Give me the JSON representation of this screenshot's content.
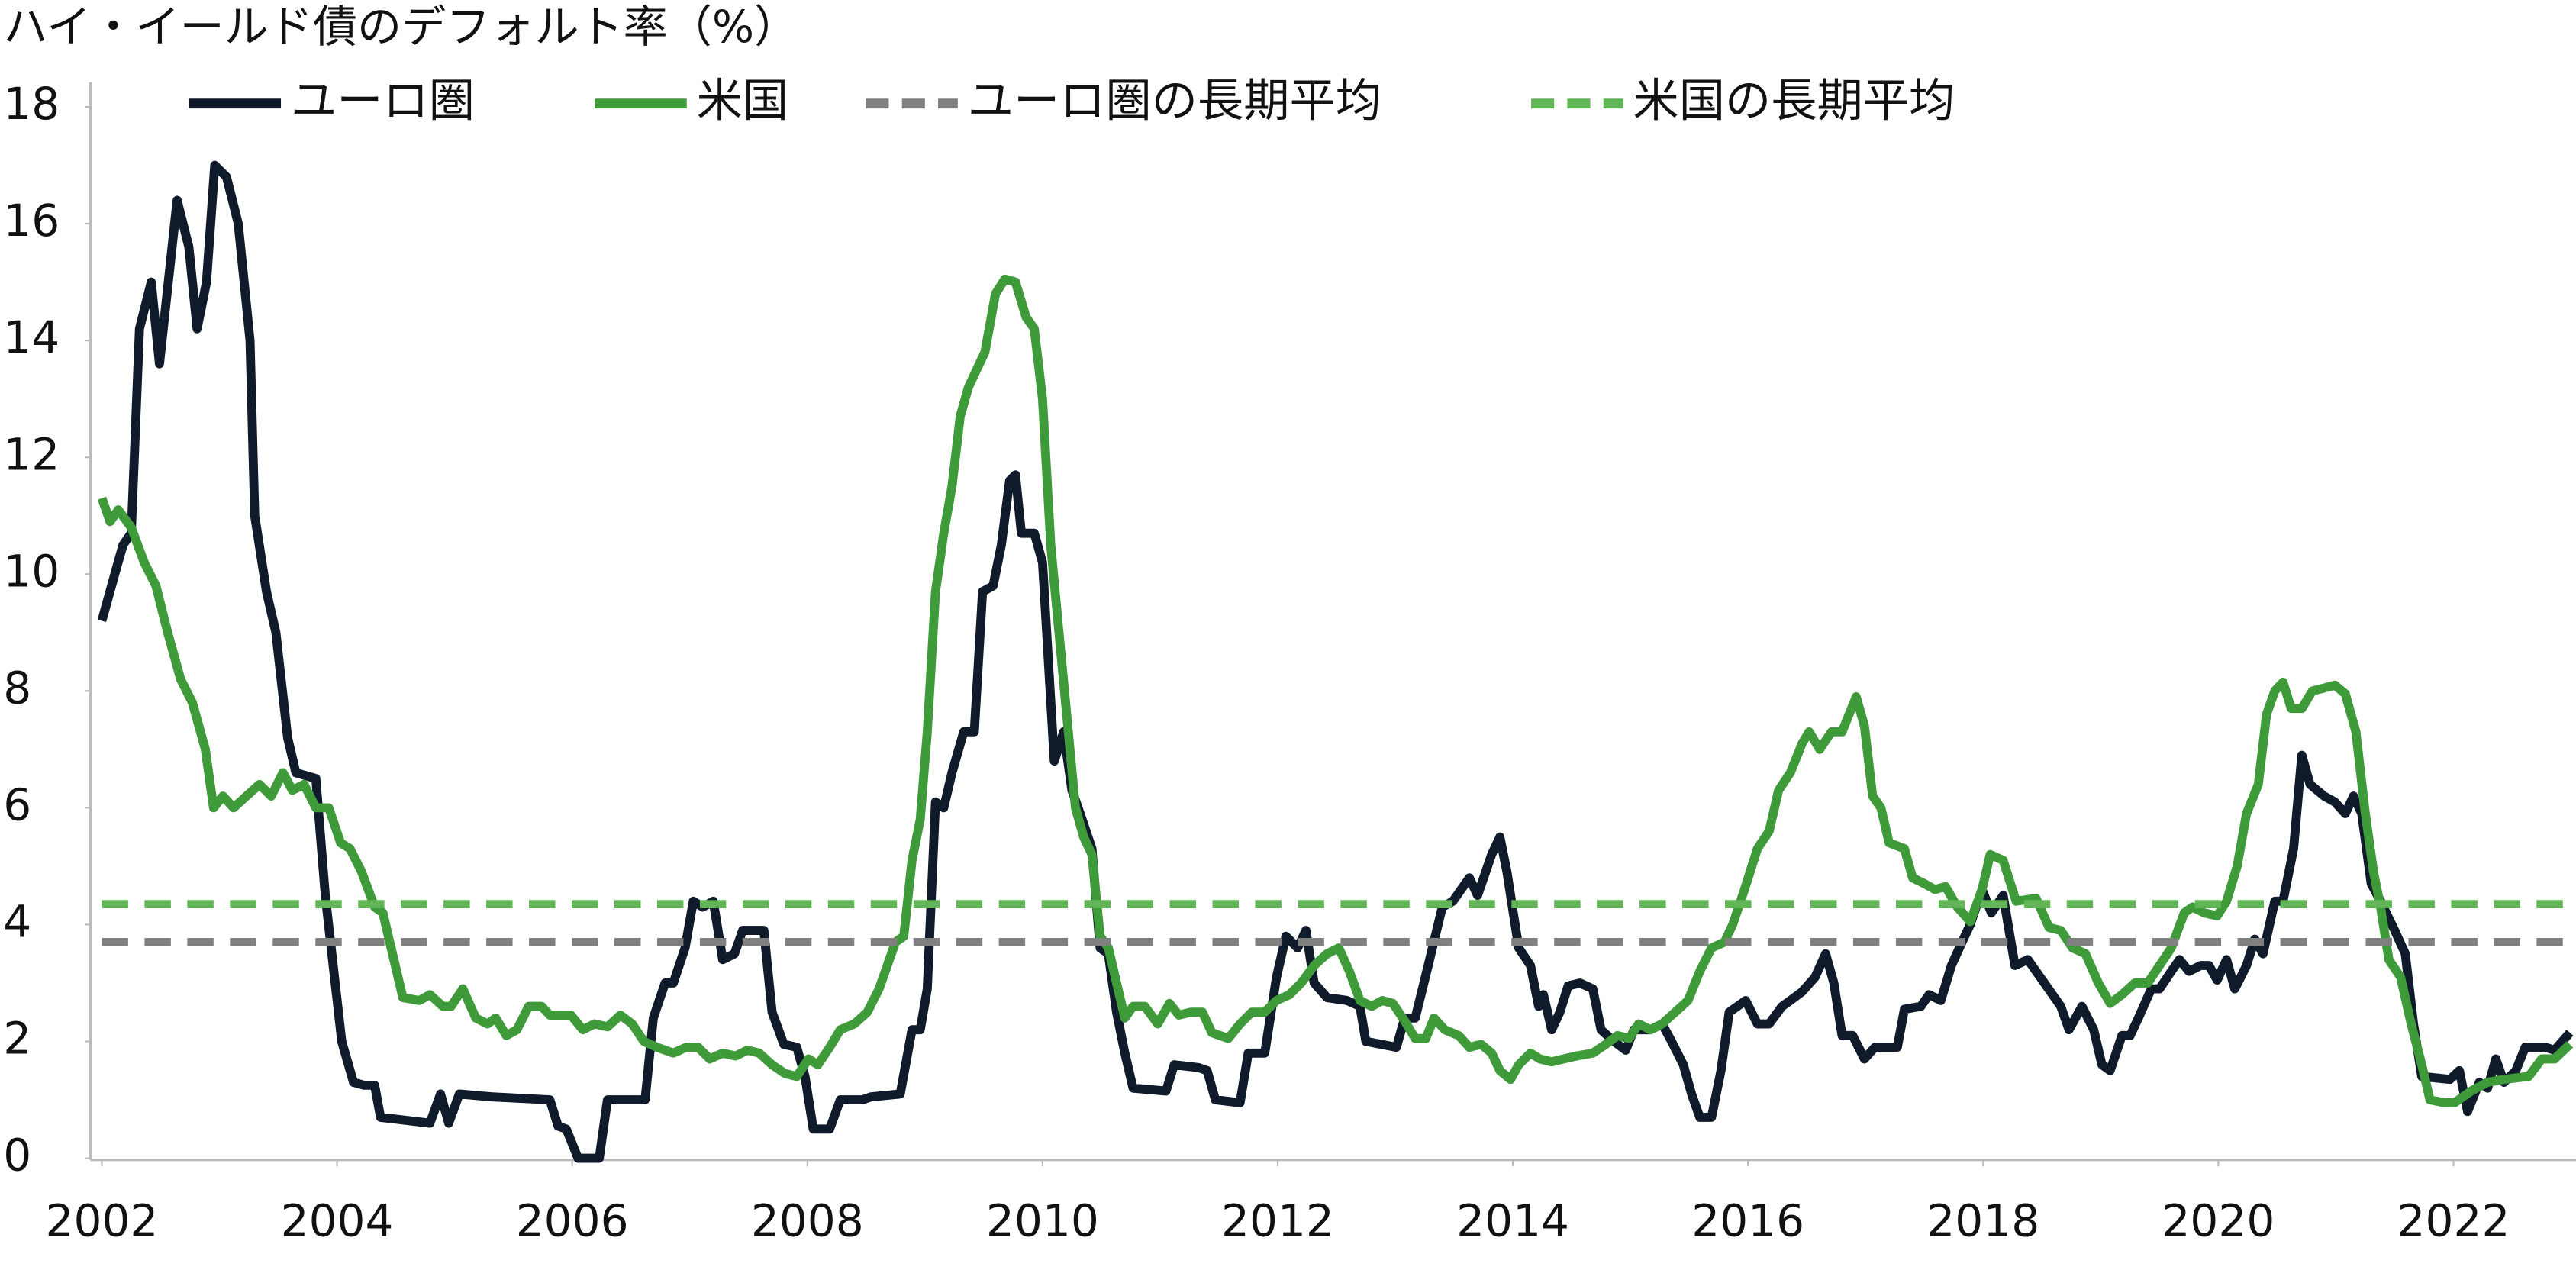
{
  "chart_data": {
    "type": "line",
    "title": "ハイ・イールド債のデフォルト率（%）",
    "xlim": [
      2002,
      2023
    ],
    "xticks": [
      2002,
      2004,
      2006,
      2008,
      2010,
      2012,
      2014,
      2016,
      2018,
      2020,
      2022
    ],
    "ylim": [
      0,
      18
    ],
    "yticks": [
      0,
      2,
      4,
      6,
      8,
      10,
      12,
      14,
      16,
      18
    ],
    "grid": false,
    "series": [
      {
        "name": "ユーロ圏",
        "color": "#0f1a2b",
        "dash": false,
        "x": [
          2002.0,
          2002.11,
          2002.18,
          2002.25,
          2002.32,
          2002.42,
          2002.49,
          2002.64,
          2002.74,
          2002.81,
          2002.89,
          2002.96,
          2003.06,
          2003.16,
          2003.26,
          2003.3,
          2003.4,
          2003.48,
          2003.58,
          2003.65,
          2003.82,
          2003.9,
          2004.04,
          2004.14,
          2004.23,
          2004.32,
          2004.37,
          2004.79,
          2004.88,
          2004.95,
          2005.04,
          2005.32,
          2005.81,
          2005.88,
          2005.95,
          2006.05,
          2006.23,
          2006.3,
          2006.62,
          2006.69,
          2006.79,
          2006.86,
          2006.96,
          2007.03,
          2007.11,
          2007.2,
          2007.28,
          2007.38,
          2007.45,
          2007.63,
          2007.7,
          2007.8,
          2007.91,
          2007.98,
          2008.05,
          2008.19,
          2008.28,
          2008.47,
          2008.54,
          2008.79,
          2008.89,
          2008.96,
          2009.02,
          2009.09,
          2009.16,
          2009.23,
          2009.33,
          2009.42,
          2009.49,
          2009.58,
          2009.65,
          2009.72,
          2009.77,
          2009.82,
          2009.93,
          2010.0,
          2010.1,
          2010.18,
          2010.25,
          2010.32,
          2010.42,
          2010.49,
          2010.56,
          2010.63,
          2010.7,
          2010.77,
          2011.05,
          2011.12,
          2011.33,
          2011.4,
          2011.47,
          2011.68,
          2011.75,
          2011.89,
          2011.99,
          2012.07,
          2012.17,
          2012.24,
          2012.31,
          2012.42,
          2012.59,
          2012.7,
          2012.75,
          2013.01,
          2013.08,
          2013.17,
          2013.28,
          2013.4,
          2013.49,
          2013.63,
          2013.7,
          2013.82,
          2013.89,
          2013.95,
          2014.05,
          2014.15,
          2014.22,
          2014.26,
          2014.33,
          2014.4,
          2014.47,
          2014.57,
          2014.68,
          2014.75,
          2014.86,
          2014.96,
          2015.03,
          2015.17,
          2015.27,
          2015.35,
          2015.45,
          2015.52,
          2015.59,
          2015.69,
          2015.77,
          2015.84,
          2015.91,
          2015.98,
          2016.08,
          2016.18,
          2016.29,
          2016.36,
          2016.46,
          2016.57,
          2016.66,
          2016.73,
          2016.8,
          2016.89,
          2016.99,
          2017.08,
          2017.27,
          2017.33,
          2017.47,
          2017.54,
          2017.64,
          2017.73,
          2017.82,
          2017.89,
          2017.99,
          2018.07,
          2018.17,
          2018.27,
          2018.38,
          2018.52,
          2018.66,
          2018.73,
          2018.84,
          2018.94,
          2019.01,
          2019.08,
          2019.18,
          2019.25,
          2019.32,
          2019.43,
          2019.5,
          2019.6,
          2019.67,
          2019.75,
          2019.85,
          2019.92,
          2019.99,
          2020.07,
          2020.14,
          2020.24,
          2020.31,
          2020.38,
          2020.48,
          2020.55,
          2020.64,
          2020.71,
          2020.78,
          2020.9,
          2020.99,
          2021.08,
          2021.15,
          2021.22,
          2021.3,
          2021.38,
          2021.5,
          2021.59,
          2021.66,
          2021.73,
          2021.97,
          2022.05,
          2022.12,
          2022.22,
          2022.29,
          2022.36,
          2022.43,
          2022.53,
          2022.61,
          2022.78,
          2022.86,
          2022.99
        ],
        "values": [
          9.2,
          10.0,
          10.5,
          10.7,
          14.2,
          15.0,
          13.6,
          16.4,
          15.6,
          14.2,
          15.0,
          17.0,
          16.8,
          16.0,
          14.0,
          11.0,
          9.7,
          9.0,
          7.2,
          6.6,
          6.5,
          4.5,
          2.0,
          1.3,
          1.25,
          1.25,
          0.7,
          0.6,
          1.1,
          0.6,
          1.1,
          1.05,
          1.0,
          0.55,
          0.5,
          0.0,
          0.0,
          1.0,
          1.0,
          2.4,
          3.0,
          3.0,
          3.6,
          4.4,
          4.3,
          4.4,
          3.4,
          3.5,
          3.9,
          3.9,
          2.5,
          1.95,
          1.9,
          1.4,
          0.5,
          0.5,
          1.0,
          1.0,
          1.05,
          1.1,
          2.2,
          2.2,
          2.9,
          6.1,
          6.0,
          6.6,
          7.3,
          7.3,
          9.7,
          9.8,
          10.5,
          11.6,
          11.7,
          10.7,
          10.7,
          10.2,
          6.8,
          7.3,
          6.3,
          5.9,
          5.3,
          3.6,
          3.5,
          2.5,
          1.8,
          1.2,
          1.15,
          1.6,
          1.55,
          1.5,
          1.0,
          0.95,
          1.8,
          1.8,
          3.1,
          3.8,
          3.6,
          3.9,
          3.0,
          2.75,
          2.7,
          2.6,
          2.0,
          1.9,
          2.4,
          2.4,
          3.3,
          4.3,
          4.4,
          4.8,
          4.5,
          5.2,
          5.5,
          4.9,
          3.6,
          3.3,
          2.6,
          2.8,
          2.2,
          2.5,
          2.95,
          3.0,
          2.9,
          2.2,
          2.0,
          1.85,
          2.2,
          2.2,
          2.3,
          2.0,
          1.6,
          1.1,
          0.7,
          0.7,
          1.5,
          2.5,
          2.6,
          2.7,
          2.3,
          2.3,
          2.6,
          2.7,
          2.85,
          3.1,
          3.5,
          3.0,
          2.1,
          2.1,
          1.7,
          1.9,
          1.9,
          2.55,
          2.6,
          2.8,
          2.7,
          3.3,
          3.7,
          4.0,
          4.6,
          4.2,
          4.5,
          3.3,
          3.4,
          3.0,
          2.6,
          2.2,
          2.6,
          2.2,
          1.6,
          1.5,
          2.1,
          2.1,
          2.4,
          2.9,
          2.9,
          3.2,
          3.4,
          3.2,
          3.3,
          3.3,
          3.05,
          3.4,
          2.9,
          3.3,
          3.75,
          3.5,
          4.4,
          4.4,
          5.3,
          6.9,
          6.4,
          6.2,
          6.1,
          5.9,
          6.2,
          5.9,
          4.7,
          4.4,
          3.9,
          3.5,
          2.3,
          1.4,
          1.35,
          1.5,
          0.8,
          1.3,
          1.2,
          1.7,
          1.3,
          1.5,
          1.9,
          1.9,
          1.85,
          2.15
        ]
      },
      {
        "name": "米国",
        "color": "#3f9a3a",
        "dash": false,
        "x": [
          2002.0,
          2002.07,
          2002.14,
          2002.25,
          2002.36,
          2002.46,
          2002.56,
          2002.67,
          2002.77,
          2002.88,
          2002.95,
          2003.03,
          2003.12,
          2003.23,
          2003.34,
          2003.44,
          2003.54,
          2003.62,
          2003.72,
          2003.82,
          2003.93,
          2004.03,
          2004.11,
          2004.21,
          2004.32,
          2004.39,
          2004.46,
          2004.56,
          2004.7,
          2004.79,
          2004.9,
          2004.97,
          2005.07,
          2005.18,
          2005.28,
          2005.35,
          2005.44,
          2005.53,
          2005.63,
          2005.74,
          2005.81,
          2005.99,
          2006.09,
          2006.19,
          2006.3,
          2006.41,
          2006.51,
          2006.61,
          2006.72,
          2006.86,
          2006.97,
          2007.07,
          2007.17,
          2007.28,
          2007.39,
          2007.49,
          2007.59,
          2007.7,
          2007.81,
          2007.91,
          2008.01,
          2008.09,
          2008.19,
          2008.28,
          2008.4,
          2008.51,
          2008.61,
          2008.68,
          2008.75,
          2008.82,
          2008.89,
          2008.96,
          2009.02,
          2009.09,
          2009.16,
          2009.23,
          2009.3,
          2009.37,
          2009.51,
          2009.6,
          2009.68,
          2009.77,
          2009.86,
          2009.93,
          2010.0,
          2010.07,
          2010.14,
          2010.21,
          2010.28,
          2010.35,
          2010.42,
          2010.49,
          2010.56,
          2010.63,
          2010.7,
          2010.77,
          2010.87,
          2010.98,
          2011.08,
          2011.16,
          2011.26,
          2011.36,
          2011.44,
          2011.58,
          2011.68,
          2011.78,
          2011.89,
          2011.99,
          2012.1,
          2012.2,
          2012.31,
          2012.42,
          2012.52,
          2012.61,
          2012.7,
          2012.8,
          2012.89,
          2012.98,
          2013.08,
          2013.17,
          2013.26,
          2013.33,
          2013.42,
          2013.54,
          2013.63,
          2013.73,
          2013.82,
          2013.89,
          2013.98,
          2014.05,
          2014.15,
          2014.23,
          2014.33,
          2014.43,
          2014.54,
          2014.68,
          2014.79,
          2014.89,
          2014.99,
          2015.07,
          2015.17,
          2015.27,
          2015.38,
          2015.49,
          2015.59,
          2015.69,
          2015.8,
          2015.87,
          2015.97,
          2016.08,
          2016.18,
          2016.26,
          2016.36,
          2016.46,
          2016.52,
          2016.61,
          2016.71,
          2016.8,
          2016.92,
          2016.99,
          2017.06,
          2017.13,
          2017.2,
          2017.33,
          2017.4,
          2017.5,
          2017.59,
          2017.68,
          2017.78,
          2017.89,
          2017.99,
          2018.06,
          2018.17,
          2018.28,
          2018.45,
          2018.56,
          2018.66,
          2018.76,
          2018.87,
          2018.98,
          2019.08,
          2019.18,
          2019.29,
          2019.4,
          2019.5,
          2019.6,
          2019.71,
          2019.78,
          2019.88,
          2019.99,
          2020.07,
          2020.16,
          2020.24,
          2020.34,
          2020.41,
          2020.48,
          2020.55,
          2020.62,
          2020.71,
          2020.8,
          2020.9,
          2020.99,
          2021.08,
          2021.17,
          2021.25,
          2021.32,
          2021.38,
          2021.45,
          2021.55,
          2021.64,
          2021.73,
          2021.8,
          2021.92,
          2022.01,
          2022.15,
          2022.29,
          2022.43,
          2022.64,
          2022.75,
          2022.86,
          2022.99
        ],
        "values": [
          11.3,
          10.9,
          11.1,
          10.8,
          10.2,
          9.8,
          9.0,
          8.2,
          7.8,
          7.0,
          6.0,
          6.2,
          6.0,
          6.2,
          6.4,
          6.2,
          6.6,
          6.3,
          6.4,
          6.0,
          6.0,
          5.4,
          5.3,
          4.9,
          4.3,
          4.2,
          3.6,
          2.75,
          2.7,
          2.8,
          2.6,
          2.6,
          2.9,
          2.4,
          2.3,
          2.4,
          2.1,
          2.2,
          2.6,
          2.6,
          2.45,
          2.45,
          2.2,
          2.3,
          2.25,
          2.45,
          2.3,
          2.0,
          1.9,
          1.8,
          1.9,
          1.9,
          1.7,
          1.8,
          1.75,
          1.85,
          1.8,
          1.6,
          1.45,
          1.4,
          1.7,
          1.6,
          1.9,
          2.2,
          2.3,
          2.5,
          2.9,
          3.3,
          3.7,
          3.8,
          5.1,
          5.8,
          7.3,
          9.7,
          10.7,
          11.5,
          12.7,
          13.2,
          13.8,
          14.8,
          15.05,
          15.0,
          14.4,
          14.2,
          13.0,
          10.5,
          9.0,
          7.5,
          6.0,
          5.5,
          5.2,
          3.8,
          3.6,
          3.0,
          2.4,
          2.6,
          2.6,
          2.3,
          2.65,
          2.45,
          2.5,
          2.5,
          2.15,
          2.05,
          2.3,
          2.5,
          2.5,
          2.7,
          2.8,
          3.0,
          3.3,
          3.5,
          3.6,
          3.2,
          2.7,
          2.6,
          2.7,
          2.65,
          2.35,
          2.05,
          2.05,
          2.4,
          2.2,
          2.1,
          1.9,
          1.95,
          1.8,
          1.5,
          1.35,
          1.6,
          1.8,
          1.7,
          1.65,
          1.7,
          1.75,
          1.8,
          1.95,
          2.1,
          2.05,
          2.3,
          2.2,
          2.3,
          2.5,
          2.7,
          3.2,
          3.6,
          3.7,
          4.0,
          4.6,
          5.3,
          5.6,
          6.3,
          6.6,
          7.1,
          7.3,
          7.0,
          7.3,
          7.3,
          7.9,
          7.4,
          6.2,
          6.0,
          5.4,
          5.3,
          4.8,
          4.7,
          4.6,
          4.65,
          4.3,
          4.05,
          4.6,
          5.2,
          5.1,
          4.4,
          4.45,
          3.95,
          3.9,
          3.6,
          3.5,
          3.0,
          2.65,
          2.8,
          3.0,
          3.0,
          3.3,
          3.6,
          4.2,
          4.3,
          4.2,
          4.15,
          4.4,
          5.0,
          5.9,
          6.4,
          7.6,
          8.0,
          8.15,
          7.7,
          7.7,
          8.0,
          8.05,
          8.1,
          7.95,
          7.3,
          5.9,
          4.9,
          4.3,
          3.4,
          3.1,
          2.3,
          1.6,
          1.0,
          0.95,
          0.95,
          1.15,
          1.3,
          1.35,
          1.4,
          1.7,
          1.7,
          1.95
        ]
      },
      {
        "name": "ユーロ圏の長期平均",
        "color": "#808080",
        "dash": true,
        "x": [
          2002,
          2023
        ],
        "values": [
          3.7,
          3.7
        ]
      },
      {
        "name": "米国の長期平均",
        "color": "#62b556",
        "dash": true,
        "x": [
          2002,
          2023
        ],
        "values": [
          4.35,
          4.35
        ]
      }
    ]
  }
}
